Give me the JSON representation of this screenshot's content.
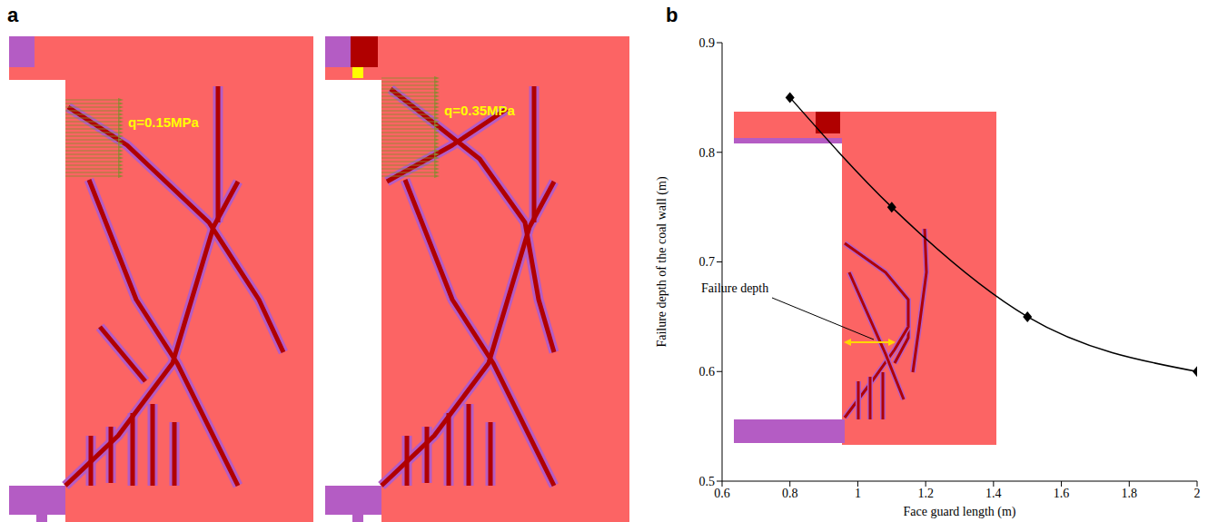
{
  "figure_a": {
    "panel": "a",
    "images": [
      {
        "annotation": "q=0.15MPa"
      },
      {
        "annotation": "q=0.35MPa"
      }
    ]
  },
  "chart_data": {
    "panel": "b",
    "type": "line",
    "x": [
      0.8,
      1.1,
      1.5,
      2
    ],
    "series": [
      {
        "name": "Failure depth of the coal wall",
        "color": "#000000",
        "values": [
          0.85,
          0.75,
          0.65,
          0.6
        ],
        "marker": "diamond"
      }
    ],
    "x_label": "Face guard length (m)",
    "y_label": "Failure depth of the coal wall (m)",
    "xlim": [
      0.6,
      2
    ],
    "xticks": [
      0.6,
      0.8,
      1,
      1.2,
      1.4,
      1.6,
      1.8,
      2
    ],
    "ylim": [
      0.5,
      0.9
    ],
    "yticks": [
      0.5,
      0.6,
      0.7,
      0.8,
      0.9
    ],
    "annotation": "Failure depth",
    "grid": false
  }
}
